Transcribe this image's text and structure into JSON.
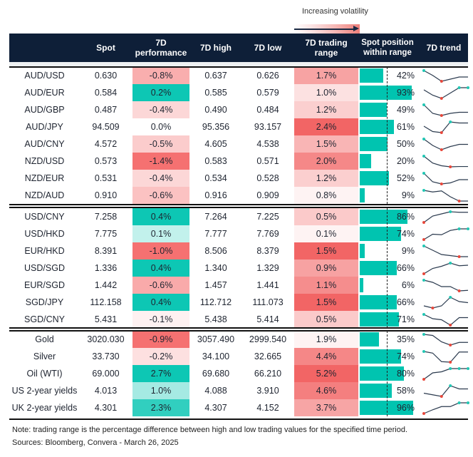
{
  "legend": {
    "label": "Increasing volatility"
  },
  "colors": {
    "header_bg": "#0e1f38",
    "positive": "#00c4b0",
    "negative": "#f46a6a",
    "range_high": "#f26565",
    "trend_line": "#2b3a4e",
    "trend_min": "#e8473b",
    "trend_max": "#22c7b4"
  },
  "headers": {
    "spot": "Spot",
    "perf": "7D performance",
    "high": "7D high",
    "low": "7D low",
    "range": "7D trading range",
    "position": "Spot position within range",
    "trend": "7D trend"
  },
  "chart_data": {
    "type": "table",
    "sections": [
      {
        "rows": [
          {
            "name": "AUD/USD",
            "spot": "0.630",
            "perf": "-0.8%",
            "high": "0.637",
            "low": "0.626",
            "range": "1.7%",
            "position": "42%",
            "trend": [
              1,
              0.55,
              0,
              0.2,
              0.4,
              0.4
            ]
          },
          {
            "name": "AUD/EUR",
            "spot": "0.584",
            "perf": "0.2%",
            "high": "0.585",
            "low": "0.579",
            "range": "1.0%",
            "position": "93%",
            "trend": [
              0.8,
              0.3,
              0,
              0.5,
              1,
              1
            ]
          },
          {
            "name": "AUD/GBP",
            "spot": "0.487",
            "perf": "-0.4%",
            "high": "0.490",
            "low": "0.484",
            "range": "1.2%",
            "position": "49%",
            "trend": [
              1,
              0.2,
              0,
              0.2,
              0.3,
              0.3
            ]
          },
          {
            "name": "AUD/JPY",
            "spot": "94.509",
            "perf": "0.0%",
            "high": "95.356",
            "low": "93.157",
            "range": "2.4%",
            "position": "61%",
            "trend": [
              0.6,
              0.1,
              0,
              1,
              0.9,
              0.9
            ]
          },
          {
            "name": "AUD/CNY",
            "spot": "4.572",
            "perf": "-0.5%",
            "high": "4.605",
            "low": "4.538",
            "range": "1.5%",
            "position": "50%",
            "trend": [
              1,
              0.4,
              0,
              0.3,
              0.5,
              0.5
            ]
          },
          {
            "name": "NZD/USD",
            "spot": "0.573",
            "perf": "-1.4%",
            "high": "0.583",
            "low": "0.571",
            "range": "2.0%",
            "position": "20%",
            "trend": [
              1,
              0.35,
              0.1,
              0,
              0.03,
              0.03
            ]
          },
          {
            "name": "NZD/EUR",
            "spot": "0.531",
            "perf": "-0.4%",
            "high": "0.534",
            "low": "0.528",
            "range": "1.2%",
            "position": "52%",
            "trend": [
              1,
              0.2,
              0,
              0.1,
              0.4,
              0.4
            ]
          },
          {
            "name": "NZD/AUD",
            "spot": "0.910",
            "perf": "-0.6%",
            "high": "0.916",
            "low": "0.909",
            "range": "0.8%",
            "position": "9%",
            "trend": [
              1,
              0.85,
              0.95,
              0.4,
              0,
              0
            ]
          }
        ]
      },
      {
        "rows": [
          {
            "name": "USD/CNY",
            "spot": "7.258",
            "perf": "0.4%",
            "high": "7.264",
            "low": "7.225",
            "range": "0.5%",
            "position": "86%",
            "trend": [
              0,
              0.6,
              0.8,
              1,
              0.95,
              0.95
            ]
          },
          {
            "name": "USD/HKD",
            "spot": "7.775",
            "perf": "0.1%",
            "high": "7.777",
            "low": "7.769",
            "range": "0.1%",
            "position": "74%",
            "trend": [
              0,
              0.5,
              0.45,
              0.85,
              1,
              1
            ]
          },
          {
            "name": "EUR/HKD",
            "spot": "8.391",
            "perf": "-1.0%",
            "high": "8.506",
            "low": "8.379",
            "range": "1.5%",
            "position": "9%",
            "trend": [
              1,
              0.6,
              0.2,
              0.1,
              0,
              0
            ]
          },
          {
            "name": "USD/SGD",
            "spot": "1.336",
            "perf": "0.4%",
            "high": "1.340",
            "low": "1.329",
            "range": "0.9%",
            "position": "66%",
            "trend": [
              0,
              0.5,
              0.7,
              1,
              0.75,
              0.8
            ]
          },
          {
            "name": "EUR/SGD",
            "spot": "1.442",
            "perf": "-0.6%",
            "high": "1.457",
            "low": "1.441",
            "range": "1.1%",
            "position": "6%",
            "trend": [
              1,
              0.8,
              0.4,
              0.4,
              0,
              0.05
            ]
          },
          {
            "name": "SGD/JPY",
            "spot": "112.158",
            "perf": "0.4%",
            "high": "112.712",
            "low": "111.073",
            "range": "1.5%",
            "position": "66%",
            "trend": [
              0.2,
              0,
              0.2,
              1,
              0.6,
              0.5
            ]
          },
          {
            "name": "SGD/CNY",
            "spot": "5.431",
            "perf": "-0.1%",
            "high": "5.438",
            "low": "5.414",
            "range": "0.5%",
            "position": "71%",
            "trend": [
              1,
              0.6,
              0.5,
              0,
              0.7,
              0.7
            ]
          }
        ]
      },
      {
        "rows": [
          {
            "name": "Gold",
            "spot": "3020.030",
            "perf": "-0.9%",
            "high": "3057.490",
            "low": "2999.540",
            "range": "1.9%",
            "position": "35%",
            "trend": [
              1,
              0.9,
              0.3,
              0,
              0.25,
              0.25
            ]
          },
          {
            "name": "Silver",
            "spot": "33.730",
            "perf": "-0.2%",
            "high": "34.100",
            "low": "32.665",
            "range": "4.4%",
            "position": "74%",
            "trend": [
              1,
              0.85,
              0.05,
              0,
              0.95,
              0.95
            ]
          },
          {
            "name": "Oil (WTI)",
            "spot": "69.000",
            "perf": "2.7%",
            "high": "69.680",
            "low": "66.210",
            "range": "5.2%",
            "position": "80%",
            "trend": [
              0,
              0.6,
              0.7,
              1,
              1,
              1
            ]
          },
          {
            "name": "US 2-year yields",
            "spot": "4.013",
            "perf": "1.0%",
            "high": "4.088",
            "low": "3.910",
            "range": "4.6%",
            "position": "58%",
            "trend": [
              0.3,
              0.15,
              0,
              1,
              0.7,
              0.7
            ]
          },
          {
            "name": "UK 2-year yields",
            "spot": "4.301",
            "perf": "2.3%",
            "high": "4.307",
            "low": "4.152",
            "range": "3.7%",
            "position": "96%",
            "trend": [
              0,
              0.35,
              0.65,
              0.65,
              1,
              1
            ]
          }
        ]
      }
    ]
  },
  "footer": {
    "note": "Note: trading range is the percentage difference between high and low trading values for the specified time period.",
    "sources": "Sources: Bloomberg, Convera - March 26, 2025"
  }
}
